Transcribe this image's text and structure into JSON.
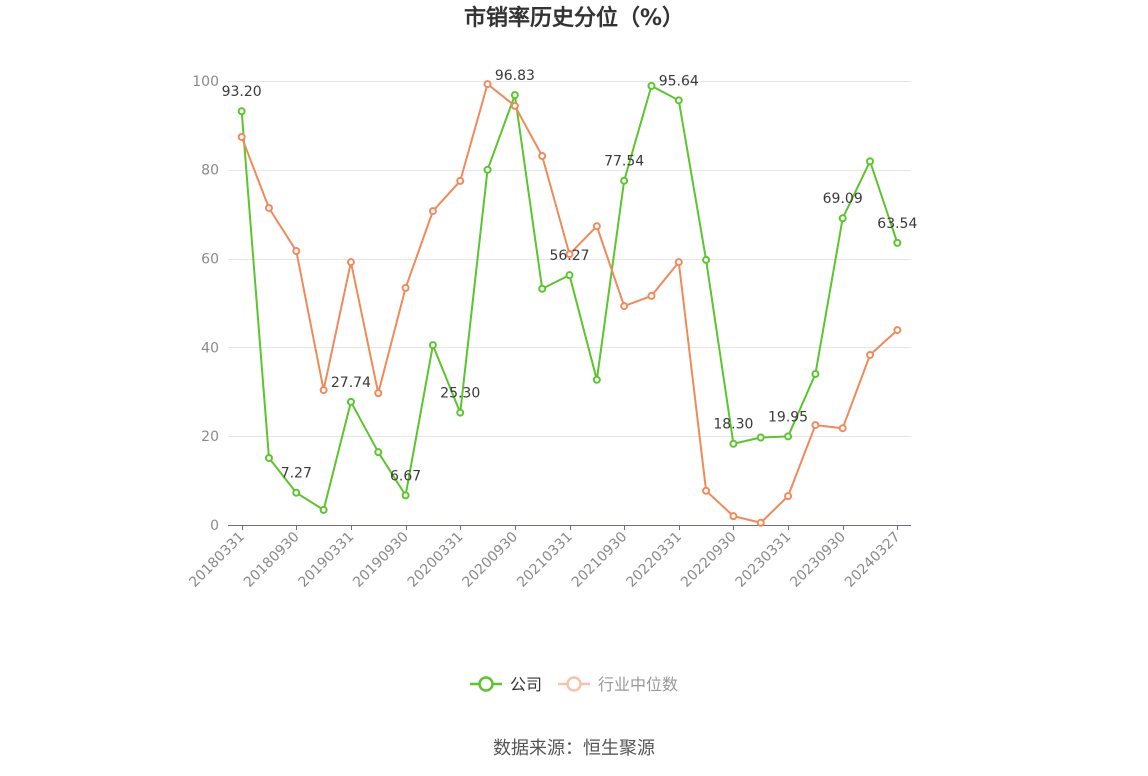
{
  "chart_data": {
    "type": "line",
    "title": "市销率历史分位（%）",
    "categories": [
      "20180331",
      "",
      "20180930",
      "",
      "20190331",
      "",
      "20190930",
      "",
      "20200331",
      "",
      "20200930",
      "",
      "20210331",
      "",
      "20210930",
      "",
      "20220331",
      "",
      "20220930",
      "",
      "20230331",
      "",
      "20230930",
      "",
      "20240327"
    ],
    "ylim": [
      0,
      100
    ],
    "yticks": [
      0,
      20,
      40,
      60,
      80,
      100
    ],
    "grid": true,
    "legend": "bottom",
    "series": [
      {
        "name": "公司",
        "color": "#5cc52e",
        "values": [
          93.2,
          15.1,
          7.27,
          3.4,
          27.74,
          16.4,
          6.67,
          40.5,
          25.3,
          80.0,
          96.83,
          53.2,
          56.27,
          32.7,
          77.54,
          98.9,
          95.64,
          59.7,
          18.3,
          19.7,
          19.95,
          34.0,
          69.09,
          81.9,
          63.54
        ],
        "data_labels": [
          "93.20",
          "",
          "7.27",
          "",
          "27.74",
          "",
          "6.67",
          "",
          "25.30",
          "",
          "96.83",
          "",
          "56.27",
          "",
          "77.54",
          "",
          "95.64",
          "",
          "18.30",
          "",
          "19.95",
          "",
          "69.09",
          "",
          "63.54"
        ]
      },
      {
        "name": "行业中位数",
        "color": "#f08a5a",
        "values": [
          87.4,
          71.4,
          61.7,
          30.4,
          59.2,
          29.7,
          53.4,
          70.7,
          77.5,
          99.3,
          94.4,
          83.1,
          61.0,
          67.3,
          49.3,
          51.6,
          59.2,
          7.7,
          2.0,
          0.5,
          6.5,
          22.5,
          21.8,
          38.3,
          43.9
        ]
      }
    ]
  },
  "source": "数据来源：恒生聚源"
}
